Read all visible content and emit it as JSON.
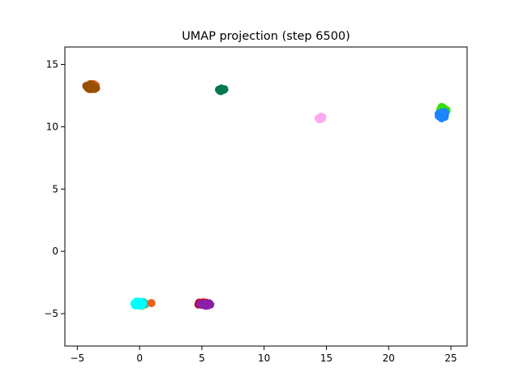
{
  "chart_data": {
    "type": "scatter",
    "title": "UMAP projection (step 6500)",
    "xlabel": "",
    "ylabel": "",
    "xlim": [
      -6.0,
      26.3
    ],
    "ylim": [
      -7.6,
      16.4
    ],
    "xticks": [
      -5,
      0,
      5,
      10,
      15,
      20,
      25
    ],
    "yticks": [
      -5,
      0,
      5,
      10,
      15
    ],
    "grid": false,
    "legend": "none",
    "clusters": [
      {
        "color": "#e8601c",
        "cx": -3.9,
        "cy": 13.2,
        "n": 22,
        "spread": [
          0.45,
          0.25
        ]
      },
      {
        "color": "#994f00",
        "cx": -3.9,
        "cy": 13.2,
        "n": 18,
        "spread": [
          0.45,
          0.22
        ]
      },
      {
        "color": "#007a4d",
        "cx": 6.6,
        "cy": 12.95,
        "n": 10,
        "spread": [
          0.25,
          0.12
        ]
      },
      {
        "color": "#ffaaf0",
        "cx": 14.55,
        "cy": 10.7,
        "n": 10,
        "spread": [
          0.2,
          0.12
        ]
      },
      {
        "color": "#33e000",
        "cx": 24.4,
        "cy": 11.3,
        "n": 12,
        "spread": [
          0.3,
          0.35
        ]
      },
      {
        "color": "#1a85ff",
        "cx": 24.3,
        "cy": 10.95,
        "n": 14,
        "spread": [
          0.3,
          0.35
        ]
      },
      {
        "color": "#ffd11a",
        "cx": 0.1,
        "cy": -4.2,
        "n": 10,
        "spread": [
          0.45,
          0.2
        ]
      },
      {
        "color": "#2ec4b6",
        "cx": 0.2,
        "cy": -4.2,
        "n": 8,
        "spread": [
          0.4,
          0.2
        ]
      },
      {
        "color": "#e8601c",
        "cx": 0.95,
        "cy": -4.15,
        "n": 1,
        "spread": [
          0.0,
          0.0
        ]
      },
      {
        "color": "#00ffff",
        "cx": -0.1,
        "cy": -4.25,
        "n": 18,
        "spread": [
          0.45,
          0.25
        ]
      },
      {
        "color": "#d00000",
        "cx": 5.1,
        "cy": -4.2,
        "n": 14,
        "spread": [
          0.45,
          0.12
        ]
      },
      {
        "color": "#8b1fa8",
        "cx": 5.3,
        "cy": -4.25,
        "n": 16,
        "spread": [
          0.5,
          0.12
        ]
      }
    ]
  }
}
